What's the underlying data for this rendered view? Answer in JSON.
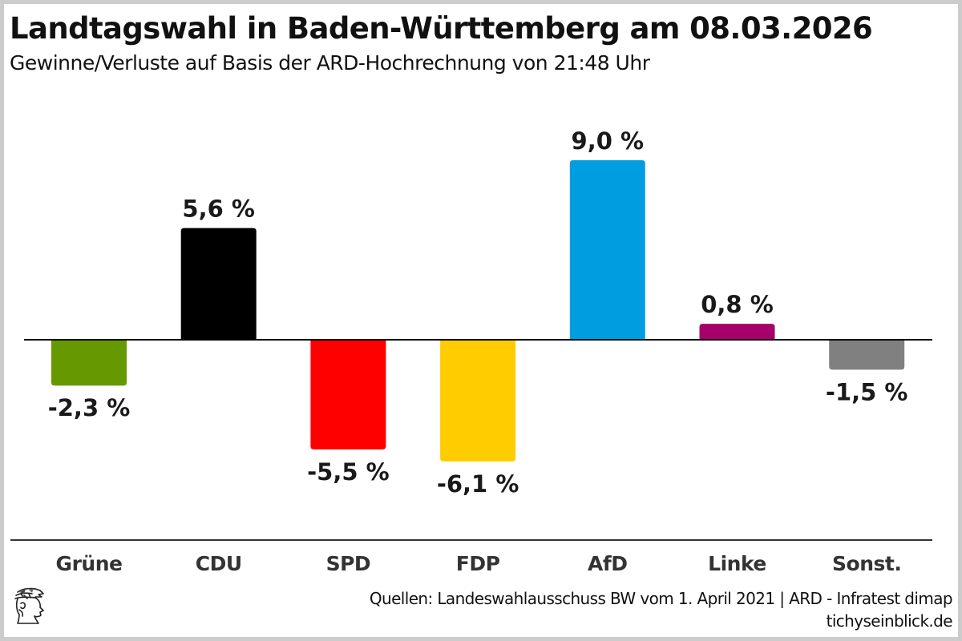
{
  "header": {
    "title": "Landtagswahl in Baden-Württemberg am 08.03.2026",
    "subtitle": "Gewinne/Verluste auf Basis der ARD-Hochrechnung von 21:48 Uhr"
  },
  "footer": {
    "source": "Quellen: Landeswahlausschuss BW vom 1. April 2021 | ARD - Infratest dimap",
    "site": "tichyseinblick.de",
    "logo_icon": "hermes-head-logo-icon"
  },
  "chart_data": {
    "type": "bar",
    "title": "Landtagswahl in Baden-Württemberg am 08.03.2026",
    "subtitle": "Gewinne/Verluste auf Basis der ARD-Hochrechnung von 21:48 Uhr",
    "xlabel": "",
    "ylabel": "",
    "unit": "%",
    "ylim": [
      -6.1,
      9.0
    ],
    "grid": false,
    "legend": "none",
    "categories": [
      "Grüne",
      "CDU",
      "SPD",
      "FDP",
      "AfD",
      "Linke",
      "Sonst."
    ],
    "values": [
      -2.3,
      5.6,
      -5.5,
      -6.1,
      9.0,
      0.8,
      -1.5
    ],
    "value_labels": [
      "-2,3 %",
      "5,6 %",
      "-5,5 %",
      "-6,1 %",
      "9,0 %",
      "0,8 %",
      "-1,5 %"
    ],
    "colors": [
      "#669900",
      "#000000",
      "#ff0000",
      "#ffcc00",
      "#009ee0",
      "#a6006b",
      "#808080"
    ]
  }
}
